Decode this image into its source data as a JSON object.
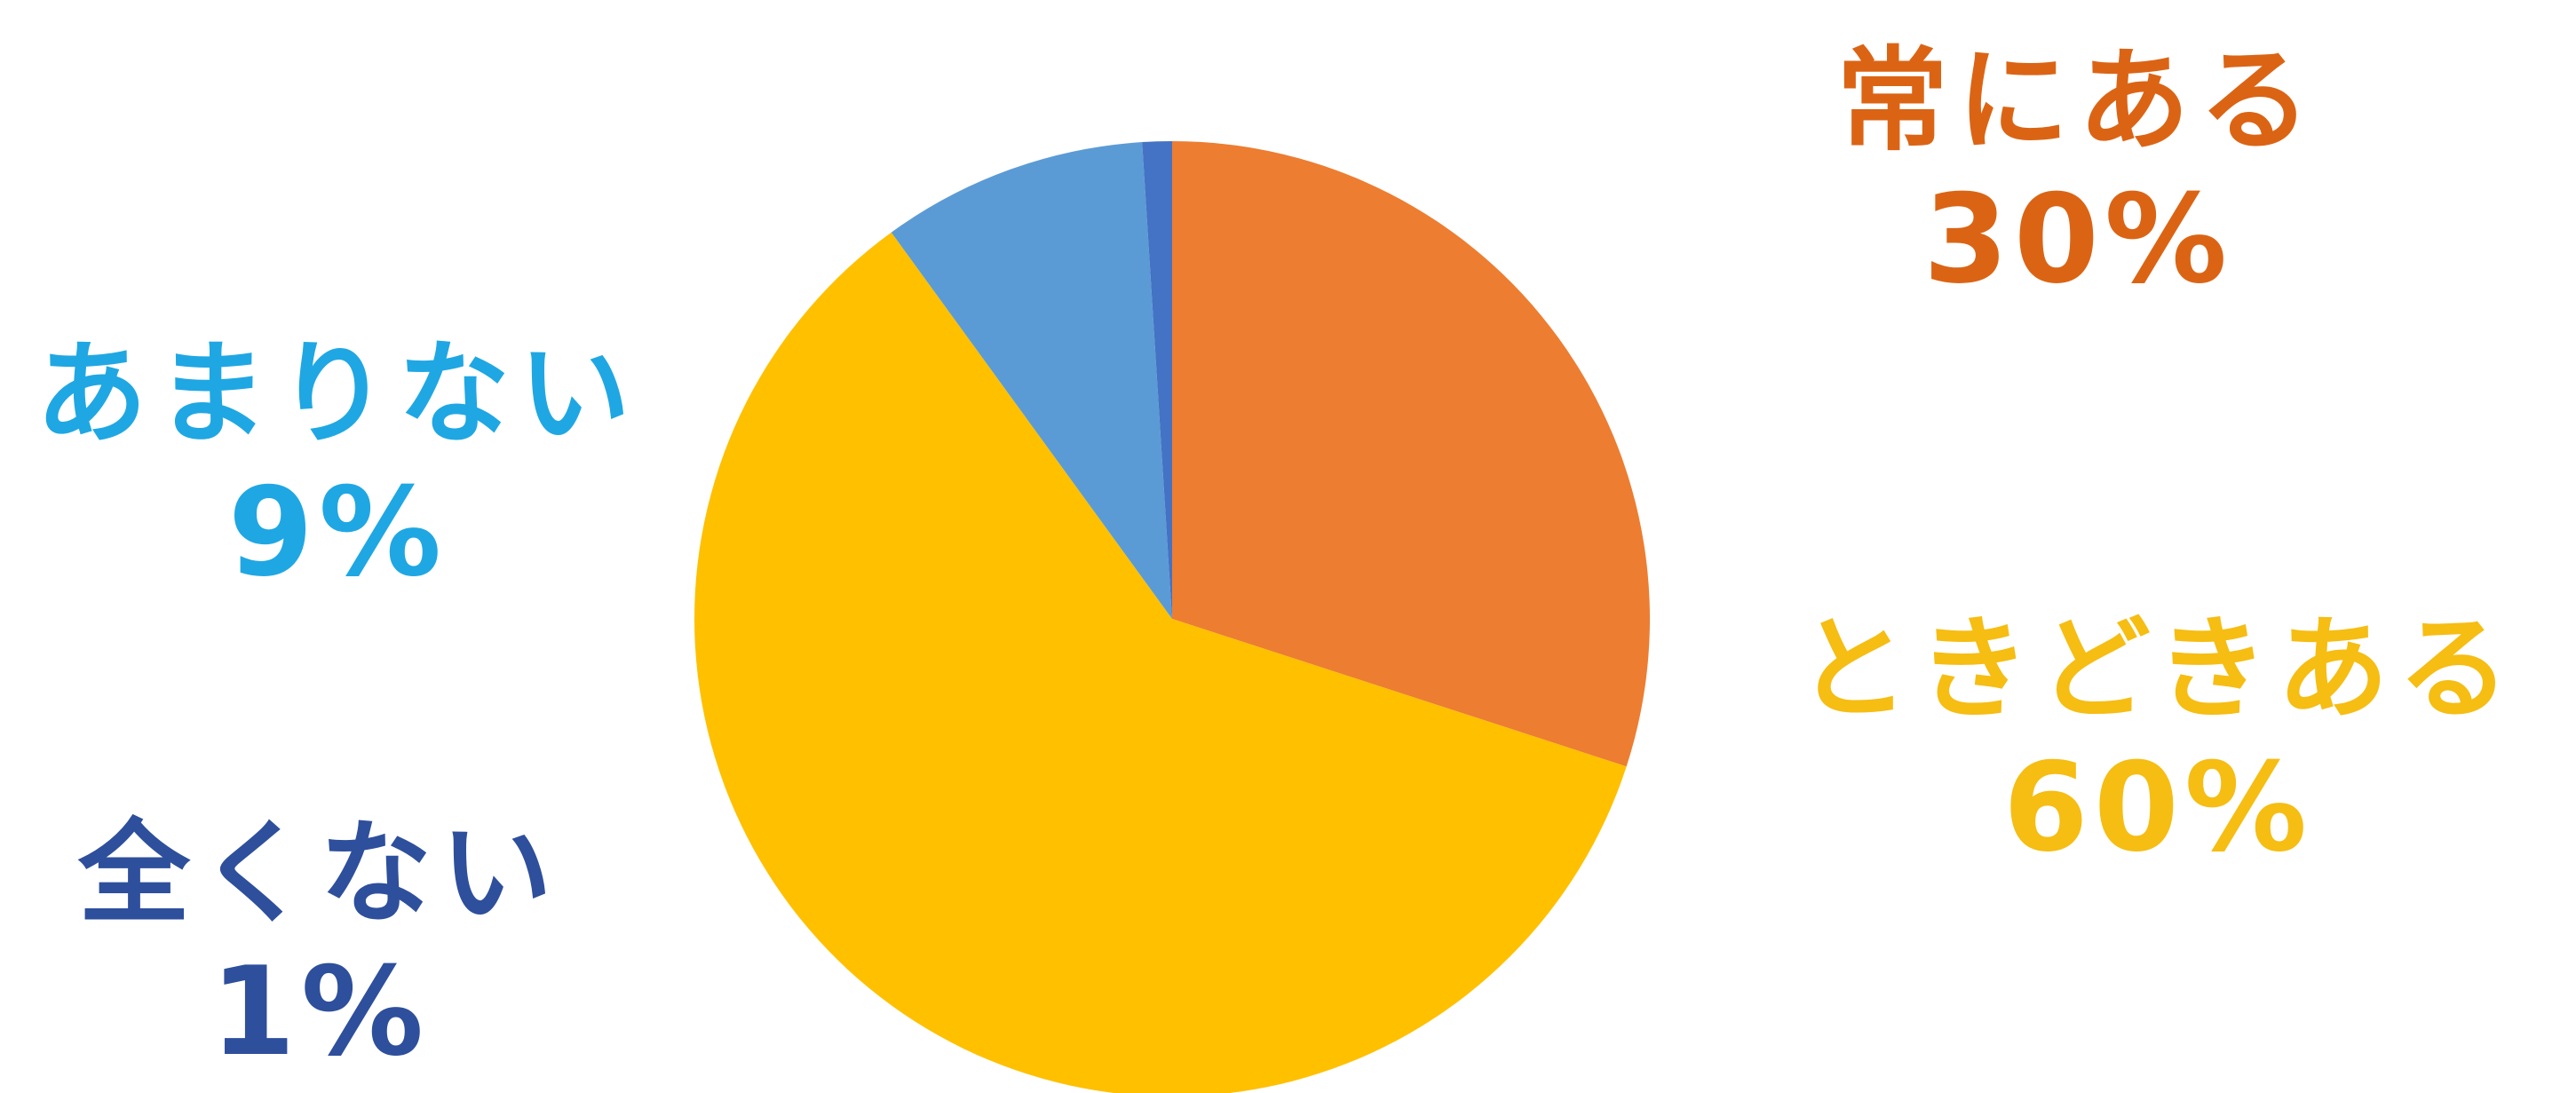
{
  "chart_data": {
    "type": "pie",
    "slices": [
      {
        "label": "常にある",
        "percent_text": "30%",
        "value": 30,
        "color": "#ED7D31",
        "text_color": "#db6414"
      },
      {
        "label": "ときどきある",
        "percent_text": "60%",
        "value": 60,
        "color": "#FFC000",
        "text_color": "#f6bd12"
      },
      {
        "label": "あまりない",
        "percent_text": "9%",
        "value": 9,
        "color": "#5B9BD5",
        "text_color": "#1fa7e3"
      },
      {
        "label": "全くない",
        "percent_text": "1%",
        "value": 1,
        "color": "#4472C4",
        "text_color": "#2e4f9c"
      }
    ],
    "start_angle_deg": 0,
    "direction": "clockwise",
    "legend": "none"
  }
}
